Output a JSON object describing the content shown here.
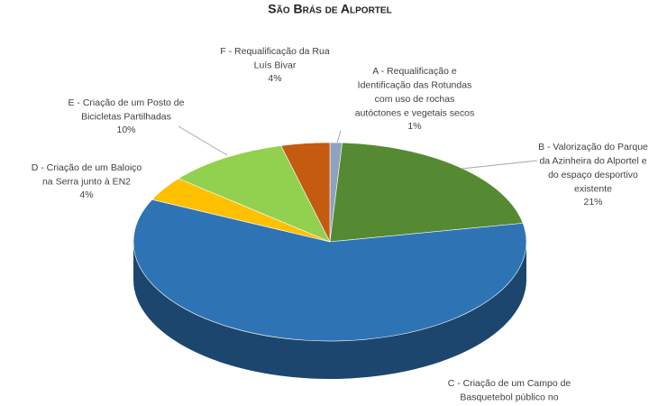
{
  "chart_data": {
    "type": "pie",
    "title": "São Brás de Alportel",
    "categories": [
      "A - Requalificação e\nIdentificação das Rotundas\ncom uso de rochas\nautóctones  e vegetais secos",
      "B - Valorização do Parque\nda Azinheira do Alportel  e\ndo espaço desportivo\nexistente",
      "C - Criação de um Campo de\nBasquetebol público no",
      "D - Criação de um Baloiço\nna Serra junto à EN2",
      "E - Criação de um Posto de\nBicicletas Partilhadas",
      "F - Requalificação da Rua\nLuís Bivar"
    ],
    "values": [
      1,
      21,
      60,
      4,
      10,
      4
    ],
    "value_labels": [
      "1%",
      "21%",
      null,
      "4%",
      "10%",
      "4%"
    ],
    "colors": [
      "#8ea2bd",
      "#558a32",
      "#2e74b5",
      "#ffc000",
      "#92d050",
      "#c55a11"
    ]
  }
}
